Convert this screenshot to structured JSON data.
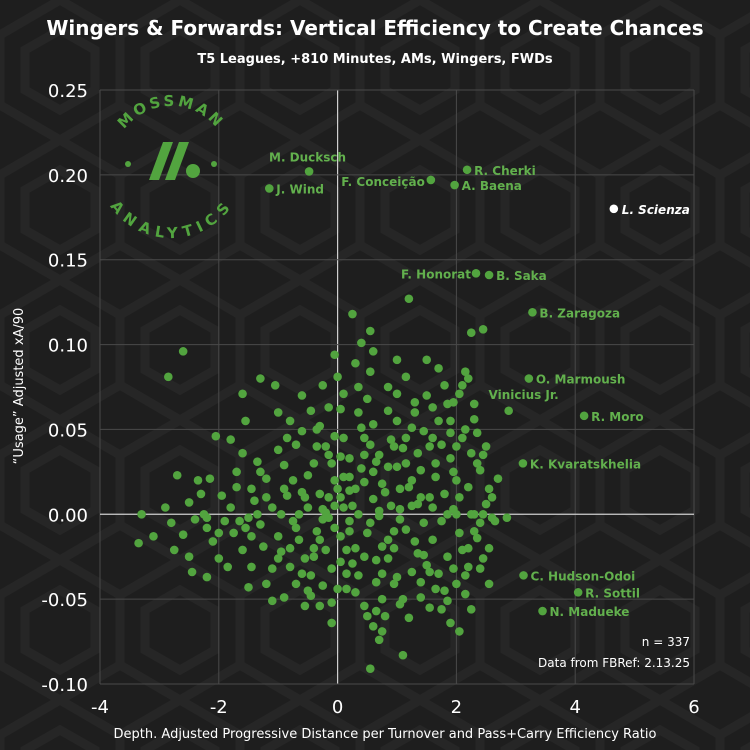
{
  "chart_data": {
    "type": "scatter",
    "title": "Wingers & Forwards: Vertical Efficiency to Create Chances",
    "subtitle": "T5 Leagues, +810 Minutes, AMs, Wingers, FWDs",
    "xlabel": "Depth. Adjusted Progressive Distance per Turnover and Pass+Carry Efficiency Ratio",
    "ylabel": "“Usage” Adjusted xA/90",
    "xlim": [
      -4,
      6
    ],
    "ylim": [
      -0.1,
      0.25
    ],
    "x_ticks": [
      "-4",
      "-2",
      "0",
      "2",
      "4",
      "6"
    ],
    "y_ticks": [
      "-0.10",
      "-0.05",
      "0.00",
      "0.05",
      "0.10",
      "0.15",
      "0.20",
      "0.25"
    ],
    "grid": true,
    "colors": {
      "points": "#52a43f",
      "labels": "#62b04d",
      "highlight": "#ffffff",
      "background": "#1e1e1e",
      "text": "#ffffff"
    },
    "highlighted": {
      "name": "L. Scienza",
      "x": 4.65,
      "y": 0.18
    },
    "labeled_points": [
      {
        "name": "M. Ducksch",
        "x": -0.48,
        "y": 0.202
      },
      {
        "name": "J. Wind",
        "x": -1.15,
        "y": 0.192
      },
      {
        "name": "F. Conceição",
        "x": 1.57,
        "y": 0.197
      },
      {
        "name": "R. Cherki",
        "x": 2.18,
        "y": 0.203
      },
      {
        "name": "A. Baena",
        "x": 1.97,
        "y": 0.194
      },
      {
        "name": "F. Honorat",
        "x": 2.33,
        "y": 0.142
      },
      {
        "name": "B. Saka",
        "x": 2.55,
        "y": 0.141
      },
      {
        "name": "B. Zaragoza",
        "x": 3.28,
        "y": 0.119
      },
      {
        "name": "O. Marmoush",
        "x": 3.22,
        "y": 0.08
      },
      {
        "name": "Vinicius Jr.",
        "x": 2.88,
        "y": 0.061
      },
      {
        "name": "R. Moro",
        "x": 4.15,
        "y": 0.058
      },
      {
        "name": "K. Kvaratskhelia",
        "x": 3.12,
        "y": 0.03
      },
      {
        "name": "C. Hudson-Odoi",
        "x": 3.13,
        "y": -0.036
      },
      {
        "name": "R. Sottil",
        "x": 4.05,
        "y": -0.046
      },
      {
        "name": "N. Madueke",
        "x": 3.45,
        "y": -0.057
      }
    ],
    "points": [
      [
        -2.6,
        0.096
      ],
      [
        -2.85,
        0.081
      ],
      [
        -2.7,
        0.023
      ],
      [
        -3.3,
        0.0
      ],
      [
        -3.1,
        -0.013
      ],
      [
        -3.35,
        -0.017
      ],
      [
        -2.9,
        0.004
      ],
      [
        -2.8,
        -0.005
      ],
      [
        -2.6,
        -0.012
      ],
      [
        -2.75,
        -0.021
      ],
      [
        -2.5,
        0.007
      ],
      [
        -2.4,
        -0.003
      ],
      [
        -2.3,
        0.012
      ],
      [
        -2.2,
        -0.008
      ],
      [
        -2.1,
        -0.016
      ],
      [
        -2.45,
        -0.034
      ],
      [
        -2.2,
        -0.037
      ],
      [
        -2.0,
        -0.026
      ],
      [
        -1.95,
        0.011
      ],
      [
        -1.9,
        -0.004
      ],
      [
        -2.05,
        0.046
      ],
      [
        -1.6,
        0.036
      ],
      [
        -1.7,
        0.016
      ],
      [
        -1.8,
        0.004
      ],
      [
        -1.75,
        -0.011
      ],
      [
        -1.6,
        -0.021
      ],
      [
        -1.5,
        -0.043
      ],
      [
        -1.45,
        -0.031
      ],
      [
        -1.3,
        -0.006
      ],
      [
        -1.2,
        0.021
      ],
      [
        -1.1,
        0.004
      ],
      [
        -1.0,
        -0.013
      ],
      [
        -0.9,
        0.029
      ],
      [
        -1.5,
        -0.002
      ],
      [
        -1.45,
        0.015
      ],
      [
        -1.35,
        0.031
      ],
      [
        -1.05,
        0.076
      ],
      [
        -1.3,
        0.08
      ],
      [
        -1.6,
        0.071
      ],
      [
        -0.8,
        0.055
      ],
      [
        -0.7,
        0.041
      ],
      [
        -0.6,
        0.049
      ],
      [
        -0.5,
        0.023
      ],
      [
        -0.85,
        0.011
      ],
      [
        -0.75,
        -0.004
      ],
      [
        -0.65,
        -0.015
      ],
      [
        -0.55,
        -0.026
      ],
      [
        -0.45,
        -0.036
      ],
      [
        -0.7,
        -0.041
      ],
      [
        -0.9,
        -0.049
      ],
      [
        -1.1,
        -0.051
      ],
      [
        -1.2,
        -0.041
      ],
      [
        -1.0,
        -0.026
      ],
      [
        -0.45,
        0.061
      ],
      [
        -0.3,
        0.052
      ],
      [
        -0.2,
        0.04
      ],
      [
        -0.1,
        0.03
      ],
      [
        -0.3,
        0.012
      ],
      [
        -0.25,
        0.003
      ],
      [
        -0.15,
        -0.002
      ],
      [
        -0.35,
        -0.01
      ],
      [
        -0.2,
        -0.021
      ],
      [
        -0.1,
        -0.032
      ],
      [
        0.0,
        -0.044
      ],
      [
        -0.45,
        -0.048
      ],
      [
        -0.55,
        -0.054
      ],
      [
        -0.3,
        -0.054
      ],
      [
        -0.1,
        -0.064
      ],
      [
        -0.25,
        0.076
      ],
      [
        -0.05,
        0.094
      ],
      [
        0.0,
        0.081
      ],
      [
        0.1,
        0.071
      ],
      [
        -0.15,
        0.063
      ],
      [
        -0.05,
        0.046
      ],
      [
        0.05,
        0.034
      ],
      [
        0.1,
        0.022
      ],
      [
        0.0,
        0.015
      ],
      [
        0.1,
        0.004
      ],
      [
        0.2,
        -0.004
      ],
      [
        0.05,
        -0.013
      ],
      [
        0.15,
        -0.021
      ],
      [
        0.25,
        -0.029
      ],
      [
        0.35,
        -0.036
      ],
      [
        0.3,
        -0.046
      ],
      [
        0.45,
        -0.054
      ],
      [
        0.6,
        -0.066
      ],
      [
        0.7,
        -0.074
      ],
      [
        0.55,
        -0.091
      ],
      [
        0.75,
        -0.069
      ],
      [
        0.3,
        0.089
      ],
      [
        0.4,
        0.101
      ],
      [
        0.25,
        0.118
      ],
      [
        0.6,
        0.096
      ],
      [
        0.55,
        0.084
      ],
      [
        0.5,
        0.068
      ],
      [
        0.4,
        0.051
      ],
      [
        0.55,
        0.041
      ],
      [
        0.65,
        0.031
      ],
      [
        0.45,
        0.019
      ],
      [
        0.6,
        0.009
      ],
      [
        0.7,
        -0.001
      ],
      [
        0.5,
        -0.011
      ],
      [
        0.75,
        -0.019
      ],
      [
        0.85,
        -0.026
      ],
      [
        0.95,
        -0.041
      ],
      [
        1.05,
        -0.053
      ],
      [
        1.2,
        -0.061
      ],
      [
        1.1,
        -0.083
      ],
      [
        0.85,
        0.061
      ],
      [
        1.0,
        0.071
      ],
      [
        1.15,
        0.081
      ],
      [
        1.3,
        0.066
      ],
      [
        1.25,
        0.051
      ],
      [
        1.1,
        0.039
      ],
      [
        1.0,
        0.028
      ],
      [
        1.2,
        0.016
      ],
      [
        1.35,
        0.006
      ],
      [
        1.05,
        0.003
      ],
      [
        1.15,
        -0.009
      ],
      [
        1.3,
        -0.016
      ],
      [
        1.45,
        -0.024
      ],
      [
        1.55,
        -0.034
      ],
      [
        1.65,
        -0.044
      ],
      [
        1.4,
        -0.049
      ],
      [
        1.75,
        -0.056
      ],
      [
        1.9,
        -0.064
      ],
      [
        2.05,
        -0.069
      ],
      [
        1.5,
        0.091
      ],
      [
        1.7,
        0.086
      ],
      [
        1.8,
        0.076
      ],
      [
        1.6,
        0.063
      ],
      [
        1.45,
        0.049
      ],
      [
        1.75,
        0.041
      ],
      [
        1.9,
        0.033
      ],
      [
        1.65,
        0.022
      ],
      [
        1.8,
        0.012
      ],
      [
        1.95,
        0.003
      ],
      [
        2.05,
        -0.011
      ],
      [
        2.1,
        -0.021
      ],
      [
        2.2,
        -0.031
      ],
      [
        2.0,
        -0.041
      ],
      [
        1.85,
        -0.051
      ],
      [
        2.25,
        -0.056
      ],
      [
        1.95,
        0.066
      ],
      [
        2.1,
        0.076
      ],
      [
        2.15,
        0.084
      ],
      [
        2.2,
        0.08
      ],
      [
        2.05,
        0.071
      ],
      [
        2.3,
        0.056
      ],
      [
        2.35,
        0.048
      ],
      [
        2.25,
        0.036
      ],
      [
        2.4,
        0.026
      ],
      [
        2.2,
        0.016
      ],
      [
        2.5,
        0.006
      ],
      [
        2.6,
        -0.002
      ],
      [
        2.35,
        -0.014
      ],
      [
        2.45,
        -0.026
      ],
      [
        2.55,
        -0.041
      ],
      [
        2.25,
        0.107
      ],
      [
        2.45,
        0.109
      ],
      [
        1.2,
        0.127
      ],
      [
        0.55,
        0.108
      ],
      [
        -0.5,
        0.004
      ],
      [
        -0.4,
        -0.02
      ],
      [
        -0.6,
        0.013
      ],
      [
        -0.8,
        -0.031
      ],
      [
        -1.25,
        -0.019
      ],
      [
        -1.85,
        -0.031
      ],
      [
        -2.15,
        0.021
      ],
      [
        -1.35,
        0.0
      ],
      [
        -0.95,
        0.0
      ],
      [
        0.35,
        0.0
      ],
      [
        0.8,
        0.013
      ],
      [
        1.6,
        0.004
      ],
      [
        2.0,
        0.0
      ],
      [
        2.65,
        -0.004
      ],
      [
        -0.05,
        0.005
      ],
      [
        0.2,
        0.033
      ],
      [
        0.9,
        0.044
      ],
      [
        1.4,
        0.026
      ],
      [
        2.7,
        0.021
      ],
      [
        -1.55,
        0.055
      ],
      [
        -2.35,
        0.02
      ],
      [
        -0.6,
        0.07
      ],
      [
        0.05,
        0.062
      ],
      [
        0.75,
        0.018
      ],
      [
        1.25,
        -0.034
      ],
      [
        0.15,
        -0.044
      ],
      [
        -0.35,
        0.04
      ],
      [
        -0.05,
        0.02
      ],
      [
        0.65,
        -0.04
      ],
      [
        1.55,
        0.01
      ],
      [
        2.3,
        -0.01
      ],
      [
        0.95,
        -0.01
      ],
      [
        0.35,
        0.06
      ],
      [
        -1.0,
        0.038
      ],
      [
        1.85,
        -0.025
      ],
      [
        1.0,
        0.055
      ],
      [
        -0.7,
        -0.008
      ],
      [
        0.45,
        -0.025
      ],
      [
        1.7,
        0.055
      ],
      [
        -1.65,
        -0.004
      ],
      [
        0.2,
        0.014
      ],
      [
        1.35,
        0.036
      ],
      [
        2.55,
        0.015
      ],
      [
        -0.25,
        -0.042
      ],
      [
        2.15,
        -0.047
      ],
      [
        -1.4,
        0.008
      ],
      [
        0.85,
        0.028
      ],
      [
        1.5,
        -0.03
      ],
      [
        -2.0,
        -0.011
      ],
      [
        0.6,
        0.053
      ],
      [
        2.1,
        0.045
      ],
      [
        1.0,
        -0.037
      ],
      [
        -0.15,
        0.01
      ],
      [
        1.25,
        0.005
      ],
      [
        -0.85,
        0.045
      ],
      [
        2.45,
        0.0
      ],
      [
        0.3,
        -0.02
      ],
      [
        -1.2,
        0.01
      ],
      [
        0.75,
        -0.05
      ],
      [
        1.9,
        0.055
      ],
      [
        -0.4,
        0.03
      ],
      [
        1.6,
        -0.015
      ],
      [
        0.45,
        0.035
      ],
      [
        2.35,
        0.03
      ],
      [
        -0.95,
        -0.022
      ],
      [
        1.15,
        0.045
      ],
      [
        0.05,
        -0.028
      ],
      [
        2.0,
        0.02
      ],
      [
        -0.2,
        0.001
      ],
      [
        0.9,
        0.005
      ],
      [
        1.45,
        -0.005
      ],
      [
        -1.7,
        0.025
      ],
      [
        2.25,
        0.0
      ],
      [
        0.55,
        -0.005
      ],
      [
        1.3,
        0.06
      ],
      [
        -0.6,
        -0.035
      ],
      [
        1.75,
        -0.004
      ],
      [
        0.2,
        -0.01
      ],
      [
        2.5,
        0.04
      ],
      [
        -1.1,
        -0.032
      ],
      [
        0.7,
        0.035
      ],
      [
        1.05,
        0.015
      ],
      [
        -0.3,
        -0.015
      ],
      [
        1.95,
        -0.032
      ],
      [
        0.35,
        0.075
      ],
      [
        -2.25,
        0.0
      ],
      [
        1.55,
        0.04
      ],
      [
        0.95,
        -0.02
      ],
      [
        -0.75,
        0.02
      ],
      [
        2.15,
        -0.036
      ],
      [
        0.1,
        0.045
      ],
      [
        1.4,
        -0.04
      ],
      [
        -1.45,
        -0.013
      ],
      [
        0.65,
        -0.027
      ],
      [
        1.85,
        0.0
      ],
      [
        -0.1,
        -0.052
      ],
      [
        2.4,
        -0.005
      ],
      [
        0.4,
        0.027
      ],
      [
        1.1,
        -0.05
      ],
      [
        -0.5,
        -0.045
      ],
      [
        1.65,
        0.03
      ],
      [
        0.8,
        -0.06
      ],
      [
        -1.8,
        0.044
      ],
      [
        2.3,
        0.065
      ],
      [
        0.25,
        0.005
      ],
      [
        1.35,
        -0.023
      ],
      [
        -0.05,
        -0.008
      ],
      [
        1.9,
        0.048
      ],
      [
        0.6,
        0.025
      ],
      [
        -1.3,
        0.025
      ],
      [
        2.05,
        0.01
      ],
      [
        0.85,
        -0.015
      ],
      [
        -0.35,
        0.05
      ],
      [
        1.5,
        0.07
      ],
      [
        0.15,
        -0.035
      ],
      [
        2.6,
        0.01
      ],
      [
        -0.9,
        0.015
      ],
      [
        1.15,
        0.03
      ],
      [
        0.5,
        -0.06
      ],
      [
        1.8,
        -0.045
      ],
      [
        -0.15,
        0.035
      ],
      [
        0.95,
        0.04
      ],
      [
        2.2,
        -0.02
      ],
      [
        -1.55,
        -0.008
      ],
      [
        0.3,
        0.015
      ],
      [
        1.7,
        -0.035
      ],
      [
        -0.65,
        0.0
      ],
      [
        1.05,
        -0.003
      ],
      [
        2.45,
        0.035
      ],
      [
        0.7,
        0.002
      ],
      [
        -0.4,
        -0.025
      ],
      [
        1.25,
        0.02
      ],
      [
        -2.2,
        -0.002
      ],
      [
        0.45,
        0.045
      ],
      [
        1.55,
        -0.055
      ],
      [
        0.05,
        0.01
      ],
      [
        2.0,
        0.04
      ],
      [
        -1.0,
        0.06
      ],
      [
        0.85,
        0.075
      ],
      [
        1.4,
        0.01
      ],
      [
        -0.25,
        -0.003
      ],
      [
        2.55,
        -0.02
      ],
      [
        0.2,
        0.022
      ],
      [
        1.6,
        0.045
      ],
      [
        -0.8,
        -0.02
      ],
      [
        0.75,
        -0.035
      ],
      [
        1.95,
        0.025
      ],
      [
        -0.55,
        0.01
      ],
      [
        2.3,
        0.0
      ],
      [
        2.4,
        -0.032
      ],
      [
        1.0,
        0.091
      ],
      [
        1.85,
        0.065
      ],
      [
        2.15,
        0.05
      ],
      [
        0.65,
        -0.057
      ],
      [
        -2.5,
        -0.025
      ],
      [
        2.85,
        -0.002
      ]
    ],
    "n_label": "n = 337",
    "source_label": "Data from FBRef: 2.13.25"
  },
  "logo": {
    "top_text": "MOSSMAN",
    "bottom_text": "ANALYTICS"
  }
}
